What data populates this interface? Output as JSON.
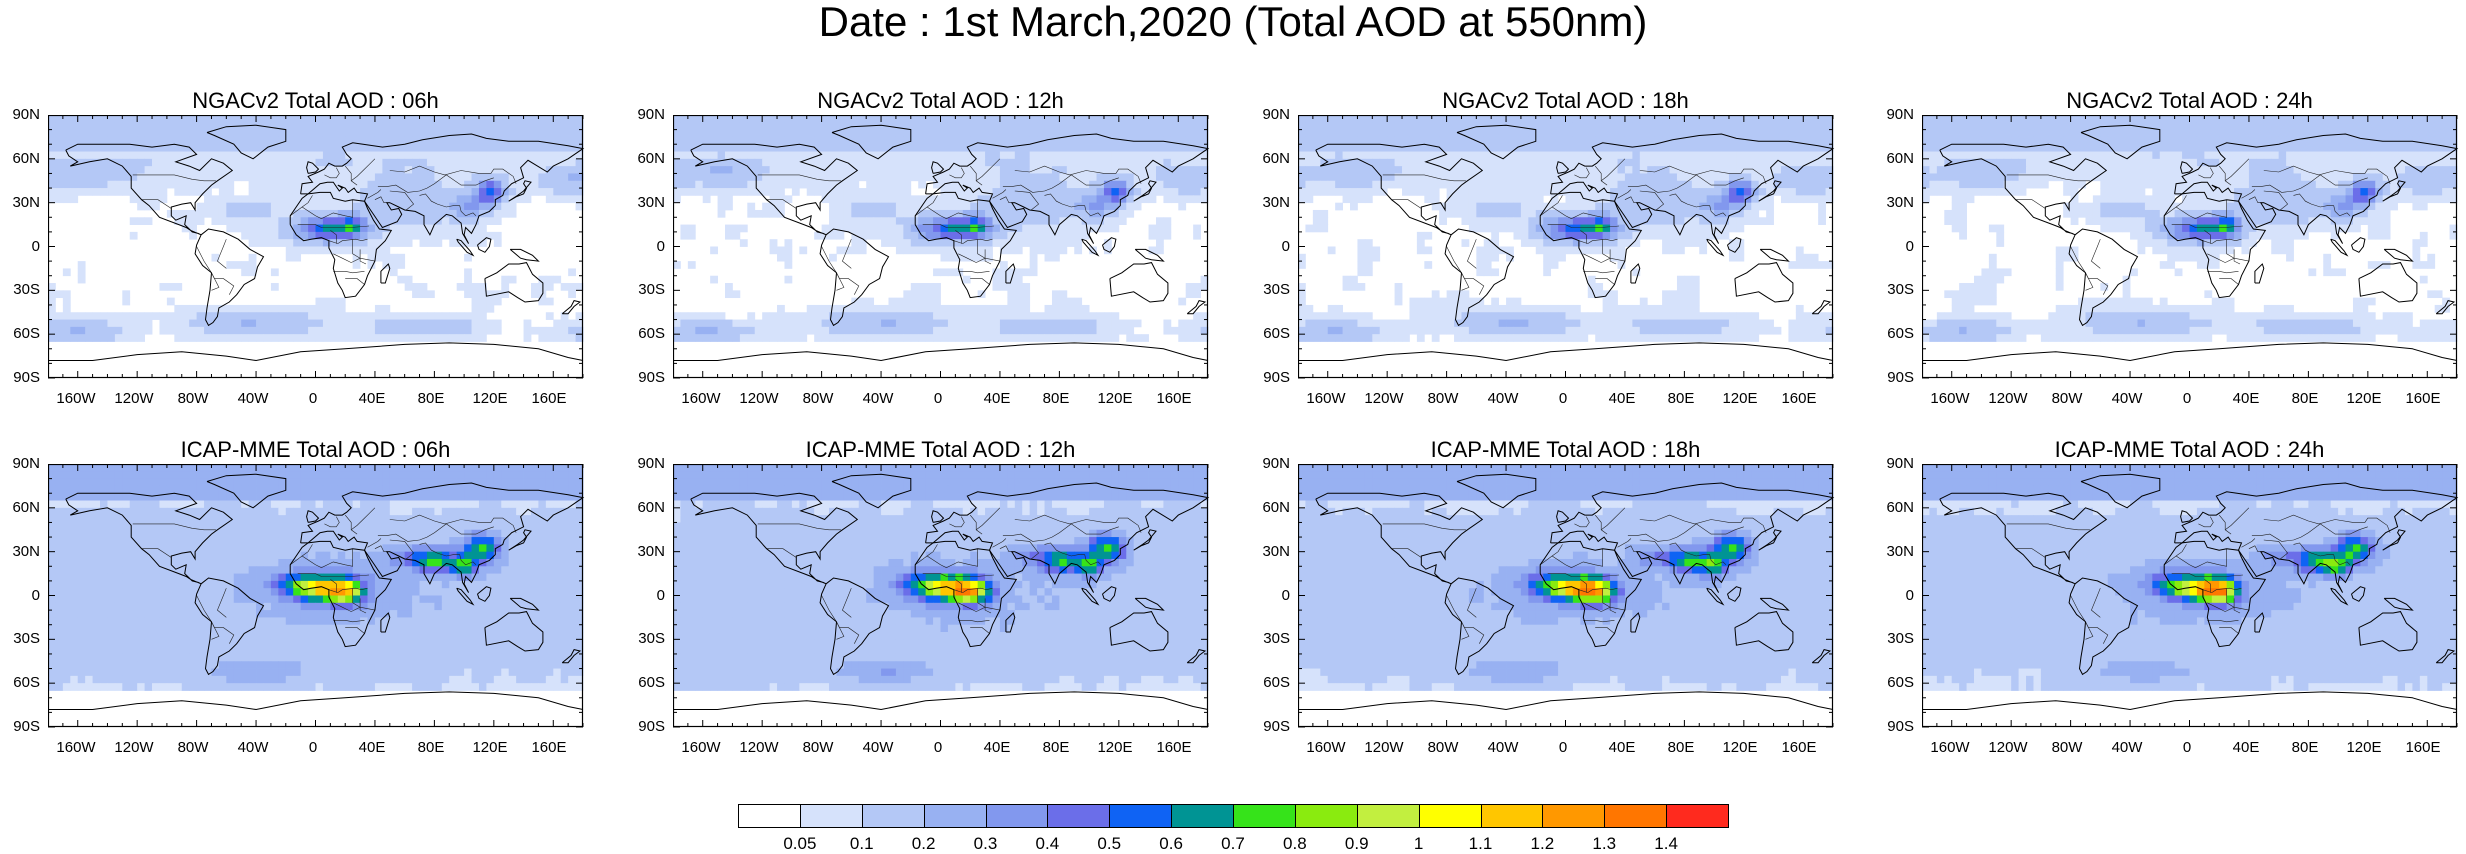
{
  "title": "Date : 1st March,2020 (Total AOD at 550nm)",
  "lat_ticks": [
    "90N",
    "60N",
    "30N",
    "0",
    "30S",
    "60S",
    "90S"
  ],
  "lon_ticks": [
    "160W",
    "120W",
    "80W",
    "40W",
    "0",
    "40E",
    "80E",
    "120E",
    "160E"
  ],
  "panels": [
    {
      "title": "NGACv2 Total AOD : 06h",
      "model": "NGACv2",
      "hour": "06h"
    },
    {
      "title": "NGACv2 Total AOD : 12h",
      "model": "NGACv2",
      "hour": "12h"
    },
    {
      "title": "NGACv2 Total AOD : 18h",
      "model": "NGACv2",
      "hour": "18h"
    },
    {
      "title": "NGACv2 Total AOD : 24h",
      "model": "NGACv2",
      "hour": "24h"
    },
    {
      "title": "ICAP-MME Total AOD : 06h",
      "model": "ICAP-MME",
      "hour": "06h"
    },
    {
      "title": "ICAP-MME Total AOD : 12h",
      "model": "ICAP-MME",
      "hour": "12h"
    },
    {
      "title": "ICAP-MME Total AOD : 18h",
      "model": "ICAP-MME",
      "hour": "18h"
    },
    {
      "title": "ICAP-MME Total AOD : 24h",
      "model": "ICAP-MME",
      "hour": "24h"
    }
  ],
  "colorbar": {
    "labels": [
      "0.05",
      "0.1",
      "0.2",
      "0.3",
      "0.4",
      "0.5",
      "0.6",
      "0.7",
      "0.8",
      "0.9",
      "1",
      "1.1",
      "1.2",
      "1.3",
      "1.4"
    ],
    "colors": [
      "#ffffff",
      "#d6e2fb",
      "#b4c8f6",
      "#98b1f2",
      "#8298ee",
      "#6b6ee9",
      "#0f63f4",
      "#009494",
      "#36e31a",
      "#8aeb0f",
      "#c2ef3f",
      "#ffff00",
      "#ffc600",
      "#ff9800",
      "#ff7600",
      "#ff2a1e"
    ]
  }
}
